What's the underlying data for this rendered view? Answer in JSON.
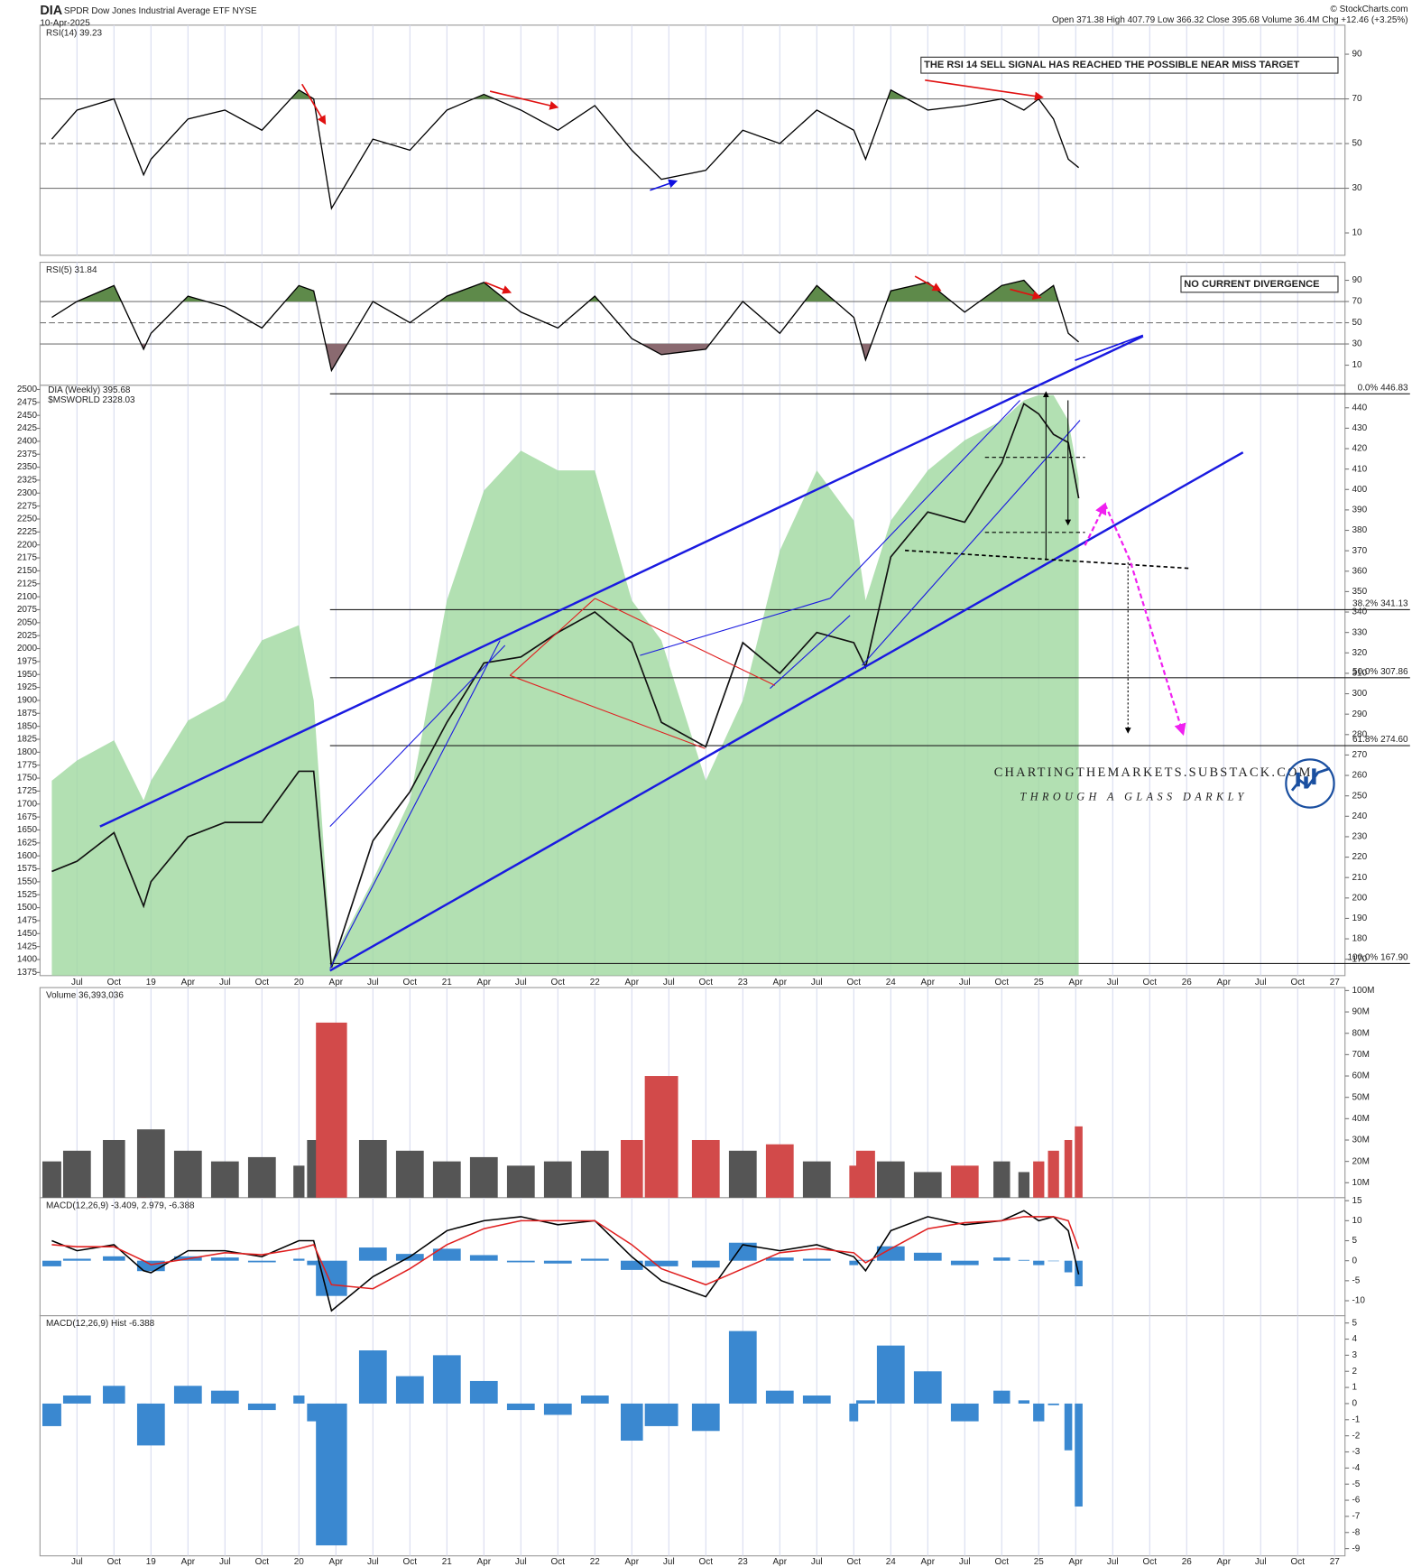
{
  "header": {
    "symbol": "DIA",
    "name": "SPDR Dow Jones Industrial Average ETF NYSE",
    "date": "10-Apr-2025",
    "source": "© StockCharts.com",
    "quote": "Open 371.38 High 407.79 Low 366.32 Close 395.68 Volume 36.4M Chg +12.46 (+3.25%)"
  },
  "watermark": {
    "site": "CHARTINGTHEMARKETS.SUBSTACK.COM",
    "tagline": "THROUGH A GLASS DARKLY"
  },
  "chart_data": [
    {
      "type": "line",
      "title": "RSI(14) 39.23",
      "annotation": "THE RSI 14 SELL SIGNAL HAS REACHED THE POSSIBLE NEAR MISS TARGET",
      "color": "#000000",
      "band_color": "#5e8a4a",
      "grid": true,
      "x": [
        2018.33,
        2018.5,
        2018.75,
        2018.95,
        2019.0,
        2019.25,
        2019.5,
        2019.75,
        2020.0,
        2020.1,
        2020.22,
        2020.5,
        2020.75,
        2021.0,
        2021.25,
        2021.5,
        2021.75,
        2022.0,
        2022.25,
        2022.45,
        2022.75,
        2023.0,
        2023.25,
        2023.5,
        2023.75,
        2023.83,
        2024.0,
        2024.25,
        2024.5,
        2024.75,
        2024.9,
        2025.0,
        2025.1,
        2025.2,
        2025.27
      ],
      "values": [
        52,
        65,
        70,
        36,
        43,
        61,
        65,
        56,
        74,
        70,
        21,
        52,
        47,
        65,
        72,
        65,
        56,
        67,
        47,
        34,
        38,
        56,
        50,
        65,
        56,
        43,
        74,
        65,
        67,
        70,
        65,
        70,
        61,
        43,
        39.23
      ],
      "xlim": [
        2018.25,
        2027.07
      ],
      "ylim": [
        0,
        103
      ],
      "yticks": [
        10,
        30,
        50,
        70,
        90
      ]
    },
    {
      "type": "line",
      "title": "RSI(5) 31.84",
      "annotation": "NO CURRENT DIVERGENCE",
      "color": "#000000",
      "band_color": "#5e8a4a",
      "low_color": "#8a6a70",
      "grid": true,
      "x": [
        2018.33,
        2018.5,
        2018.75,
        2018.95,
        2019.0,
        2019.25,
        2019.5,
        2019.75,
        2020.0,
        2020.1,
        2020.22,
        2020.5,
        2020.75,
        2021.0,
        2021.25,
        2021.5,
        2021.75,
        2022.0,
        2022.25,
        2022.45,
        2022.75,
        2023.0,
        2023.25,
        2023.5,
        2023.75,
        2023.83,
        2024.0,
        2024.25,
        2024.5,
        2024.75,
        2024.9,
        2025.0,
        2025.1,
        2025.2,
        2025.27
      ],
      "values": [
        55,
        70,
        85,
        25,
        40,
        75,
        65,
        45,
        85,
        80,
        5,
        70,
        50,
        75,
        88,
        60,
        45,
        75,
        35,
        20,
        25,
        70,
        40,
        85,
        55,
        15,
        80,
        88,
        60,
        85,
        90,
        75,
        85,
        40,
        31.84
      ],
      "xlim": [
        2018.25,
        2027.07
      ],
      "ylim": [
        -9,
        107
      ],
      "yticks": [
        10,
        30,
        50,
        70,
        90
      ]
    },
    {
      "type": "line",
      "grid": true,
      "x": [
        2018.33,
        2018.5,
        2018.75,
        2018.95,
        2019.0,
        2019.25,
        2019.5,
        2019.75,
        2020.0,
        2020.1,
        2020.22,
        2020.5,
        2020.75,
        2021.0,
        2021.25,
        2021.5,
        2021.75,
        2022.0,
        2022.25,
        2022.45,
        2022.75,
        2023.0,
        2023.25,
        2023.5,
        2023.75,
        2023.83,
        2024.0,
        2024.25,
        2024.5,
        2024.75,
        2024.9,
        2025.0,
        2025.1,
        2025.2,
        2025.27
      ],
      "series": [
        {
          "name": "DIA (Weekly) 395.68",
          "color": "#111111",
          "values": [
            213,
            218,
            232,
            196,
            208,
            230,
            237,
            237,
            262,
            262,
            166,
            228,
            252,
            286,
            315,
            318,
            330,
            340,
            325,
            286,
            274,
            325,
            310,
            330,
            325,
            313,
            367,
            389,
            384,
            413,
            442,
            437,
            427,
            423,
            395.68
          ]
        },
        {
          "name": "$MSWORLD 2328.03",
          "color": "#2e7d2e",
          "fill": "#9fd89f",
          "axis": "y2",
          "values": [
            1745,
            1784,
            1823,
            1707,
            1745,
            1861,
            1900,
            2016,
            2045,
            1900,
            1398,
            1553,
            1707,
            2093,
            2305,
            2382,
            2344,
            2344,
            2093,
            2016,
            1745,
            1900,
            2189,
            2344,
            2247,
            2093,
            2247,
            2344,
            2402,
            2440,
            2479,
            2489,
            2489,
            2440,
            2328.03
          ]
        }
      ],
      "fib_levels": [
        {
          "label": "0.0% 446.83",
          "value": 446.83
        },
        {
          "label": "38.2% 341.13",
          "value": 341.13
        },
        {
          "label": "50.0% 307.86",
          "value": 307.86
        },
        {
          "label": "61.8% 274.60",
          "value": 274.6
        },
        {
          "label": "100.0% 167.90",
          "value": 167.9
        }
      ],
      "xlim": [
        2018.25,
        2027.07
      ],
      "ylim": [
        162,
        451
      ],
      "yticks": [
        170,
        180,
        190,
        200,
        210,
        220,
        230,
        240,
        250,
        260,
        270,
        280,
        290,
        300,
        310,
        320,
        330,
        340,
        350,
        360,
        370,
        380,
        390,
        400,
        410,
        420,
        430,
        440
      ],
      "y2lim": [
        1369,
        2508
      ],
      "y2ticks": [
        1375,
        1400,
        1425,
        1450,
        1475,
        1500,
        1525,
        1550,
        1575,
        1600,
        1625,
        1650,
        1675,
        1700,
        1725,
        1750,
        1775,
        1800,
        1825,
        1850,
        1875,
        1900,
        1925,
        1950,
        1975,
        2000,
        2025,
        2050,
        2075,
        2100,
        2125,
        2150,
        2175,
        2200,
        2225,
        2250,
        2275,
        2300,
        2325,
        2350,
        2375,
        2400,
        2425,
        2450,
        2475,
        2500
      ],
      "xticks": [
        {
          "value": 2018.5,
          "label": "Jul"
        },
        {
          "value": 2018.75,
          "label": "Oct"
        },
        {
          "value": 2019,
          "label": "19"
        },
        {
          "value": 2019.25,
          "label": "Apr"
        },
        {
          "value": 2019.5,
          "label": "Jul"
        },
        {
          "value": 2019.75,
          "label": "Oct"
        },
        {
          "value": 2020,
          "label": "20"
        },
        {
          "value": 2020.25,
          "label": "Apr"
        },
        {
          "value": 2020.5,
          "label": "Jul"
        },
        {
          "value": 2020.75,
          "label": "Oct"
        },
        {
          "value": 2021,
          "label": "21"
        },
        {
          "value": 2021.25,
          "label": "Apr"
        },
        {
          "value": 2021.5,
          "label": "Jul"
        },
        {
          "value": 2021.75,
          "label": "Oct"
        },
        {
          "value": 2022,
          "label": "22"
        },
        {
          "value": 2022.25,
          "label": "Apr"
        },
        {
          "value": 2022.5,
          "label": "Jul"
        },
        {
          "value": 2022.75,
          "label": "Oct"
        },
        {
          "value": 2023,
          "label": "23"
        },
        {
          "value": 2023.25,
          "label": "Apr"
        },
        {
          "value": 2023.5,
          "label": "Jul"
        },
        {
          "value": 2023.75,
          "label": "Oct"
        },
        {
          "value": 2024,
          "label": "24"
        },
        {
          "value": 2024.25,
          "label": "Apr"
        },
        {
          "value": 2024.5,
          "label": "Jul"
        },
        {
          "value": 2024.75,
          "label": "Oct"
        },
        {
          "value": 2025,
          "label": "25"
        },
        {
          "value": 2025.25,
          "label": "Apr"
        },
        {
          "value": 2025.5,
          "label": "Jul"
        },
        {
          "value": 2025.75,
          "label": "Oct"
        },
        {
          "value": 2026,
          "label": "26"
        },
        {
          "value": 2026.25,
          "label": "Apr"
        },
        {
          "value": 2026.5,
          "label": "Jul"
        },
        {
          "value": 2026.75,
          "label": "Oct"
        },
        {
          "value": 2027,
          "label": "27"
        }
      ]
    },
    {
      "type": "bar",
      "title": "Volume 36,393,036",
      "up_color": "#555555",
      "down_color": "#d24a4a",
      "grid": true,
      "x": [
        2018.33,
        2018.5,
        2018.75,
        2018.95,
        2019.0,
        2019.25,
        2019.5,
        2019.75,
        2020.0,
        2020.1,
        2020.22,
        2020.5,
        2020.75,
        2021.0,
        2021.25,
        2021.5,
        2021.75,
        2022.0,
        2022.25,
        2022.45,
        2022.75,
        2023.0,
        2023.25,
        2023.5,
        2023.75,
        2023.83,
        2024.0,
        2024.25,
        2024.5,
        2024.75,
        2024.9,
        2025.0,
        2025.1,
        2025.2,
        2025.27
      ],
      "values": [
        20000000,
        25000000,
        30000000,
        15000000,
        35000000,
        25000000,
        20000000,
        22000000,
        18000000,
        30000000,
        85000000,
        30000000,
        25000000,
        20000000,
        22000000,
        18000000,
        20000000,
        25000000,
        30000000,
        60000000,
        30000000,
        25000000,
        28000000,
        20000000,
        18000000,
        25000000,
        20000000,
        15000000,
        18000000,
        20000000,
        15000000,
        20000000,
        25000000,
        30000000,
        36393036
      ],
      "xlim": [
        2018.25,
        2027.07
      ],
      "ylim": [
        3000000,
        101400000
      ],
      "yticks": [
        {
          "value": 10000000,
          "label": "10M"
        },
        {
          "value": 20000000,
          "label": "20M"
        },
        {
          "value": 30000000,
          "label": "30M"
        },
        {
          "value": 40000000,
          "label": "40M"
        },
        {
          "value": 50000000,
          "label": "50M"
        },
        {
          "value": 60000000,
          "label": "60M"
        },
        {
          "value": 70000000,
          "label": "70M"
        },
        {
          "value": 80000000,
          "label": "80M"
        },
        {
          "value": 90000000,
          "label": "90M"
        },
        {
          "value": 100000000,
          "label": "100M"
        }
      ]
    },
    {
      "type": "line",
      "title": "MACD(12,26,9) -3.409, 2.979, -6.388",
      "hist_color": "#3a88d0",
      "grid": true,
      "x": [
        2018.33,
        2018.5,
        2018.75,
        2018.95,
        2019.0,
        2019.25,
        2019.5,
        2019.75,
        2020.0,
        2020.1,
        2020.22,
        2020.5,
        2020.75,
        2021.0,
        2021.25,
        2021.5,
        2021.75,
        2022.0,
        2022.25,
        2022.45,
        2022.75,
        2023.0,
        2023.25,
        2023.5,
        2023.75,
        2023.83,
        2024.0,
        2024.25,
        2024.5,
        2024.75,
        2024.9,
        2025.0,
        2025.1,
        2025.2,
        2025.27
      ],
      "series": [
        {
          "color": "#000000",
          "values": [
            5,
            2.5,
            4,
            -2.5,
            -3,
            2.5,
            2.5,
            1,
            5,
            5,
            -12.5,
            -4,
            1,
            7.5,
            10,
            11,
            9,
            10,
            1,
            -5,
            -9,
            4,
            2.5,
            4,
            1,
            -2.5,
            7.5,
            11,
            9,
            10,
            12.5,
            10,
            11,
            7.5,
            -3.409
          ]
        },
        {
          "color": "#e02020",
          "values": [
            4,
            3.5,
            3.5,
            0,
            -1,
            0.5,
            2,
            1.5,
            3,
            4,
            -6,
            -7,
            -2,
            4,
            8,
            10,
            10,
            10,
            4,
            -2,
            -6,
            -2,
            2,
            3,
            2,
            -0.5,
            3,
            8,
            9.5,
            10,
            11,
            11,
            11,
            10,
            2.979
          ]
        }
      ],
      "xlim": [
        2018.25,
        2027.07
      ],
      "ylim": [
        -13.75,
        15.75
      ],
      "yticks": [
        -10,
        -5,
        0,
        5,
        10,
        15
      ]
    },
    {
      "type": "bar",
      "title": "MACD(12,26,9) Hist -6.388",
      "color": "#3a88d0",
      "grid": true,
      "x": [
        2018.33,
        2018.5,
        2018.75,
        2018.95,
        2019.0,
        2019.25,
        2019.5,
        2019.75,
        2020.0,
        2020.1,
        2020.22,
        2020.5,
        2020.75,
        2021.0,
        2021.25,
        2021.5,
        2021.75,
        2022.0,
        2022.25,
        2022.45,
        2022.75,
        2023.0,
        2023.25,
        2023.5,
        2023.75,
        2023.83,
        2024.0,
        2024.25,
        2024.5,
        2024.75,
        2024.9,
        2025.0,
        2025.1,
        2025.2,
        2025.27
      ],
      "values": [
        -1.4,
        0.5,
        1.1,
        -2.3,
        -2.6,
        1.1,
        0.8,
        -0.4,
        0.5,
        -1.1,
        -8.8,
        3.3,
        1.7,
        3.0,
        1.4,
        -0.4,
        -0.7,
        0.5,
        -2.3,
        -1.4,
        -1.7,
        4.5,
        0.8,
        0.5,
        -1.1,
        0.2,
        3.6,
        2.0,
        -1.1,
        0.8,
        0.2,
        -1.1,
        -0.1,
        -2.9,
        -6.388
      ],
      "xlim": [
        2018.25,
        2027.07
      ],
      "ylim": [
        -9.45,
        5.45
      ],
      "yticks": [
        -9,
        -8,
        -7,
        -6,
        -5,
        -4,
        -3,
        -2,
        -1,
        0,
        1,
        2,
        3,
        4,
        5
      ],
      "xticks": [
        {
          "value": 2018.5,
          "label": "Jul"
        },
        {
          "value": 2018.75,
          "label": "Oct"
        },
        {
          "value": 2019,
          "label": "19"
        },
        {
          "value": 2019.25,
          "label": "Apr"
        },
        {
          "value": 2019.5,
          "label": "Jul"
        },
        {
          "value": 2019.75,
          "label": "Oct"
        },
        {
          "value": 2020,
          "label": "20"
        },
        {
          "value": 2020.25,
          "label": "Apr"
        },
        {
          "value": 2020.5,
          "label": "Jul"
        },
        {
          "value": 2020.75,
          "label": "Oct"
        },
        {
          "value": 2021,
          "label": "21"
        },
        {
          "value": 2021.25,
          "label": "Apr"
        },
        {
          "value": 2021.5,
          "label": "Jul"
        },
        {
          "value": 2021.75,
          "label": "Oct"
        },
        {
          "value": 2022,
          "label": "22"
        },
        {
          "value": 2022.25,
          "label": "Apr"
        },
        {
          "value": 2022.5,
          "label": "Jul"
        },
        {
          "value": 2022.75,
          "label": "Oct"
        },
        {
          "value": 2023,
          "label": "23"
        },
        {
          "value": 2023.25,
          "label": "Apr"
        },
        {
          "value": 2023.5,
          "label": "Jul"
        },
        {
          "value": 2023.75,
          "label": "Oct"
        },
        {
          "value": 2024,
          "label": "24"
        },
        {
          "value": 2024.25,
          "label": "Apr"
        },
        {
          "value": 2024.5,
          "label": "Jul"
        },
        {
          "value": 2024.75,
          "label": "Oct"
        },
        {
          "value": 2025,
          "label": "25"
        },
        {
          "value": 2025.25,
          "label": "Apr"
        },
        {
          "value": 2025.5,
          "label": "Jul"
        },
        {
          "value": 2025.75,
          "label": "Oct"
        },
        {
          "value": 2026,
          "label": "26"
        },
        {
          "value": 2026.25,
          "label": "Apr"
        },
        {
          "value": 2026.5,
          "label": "Jul"
        },
        {
          "value": 2026.75,
          "label": "Oct"
        },
        {
          "value": 2027,
          "label": "27"
        }
      ]
    }
  ]
}
